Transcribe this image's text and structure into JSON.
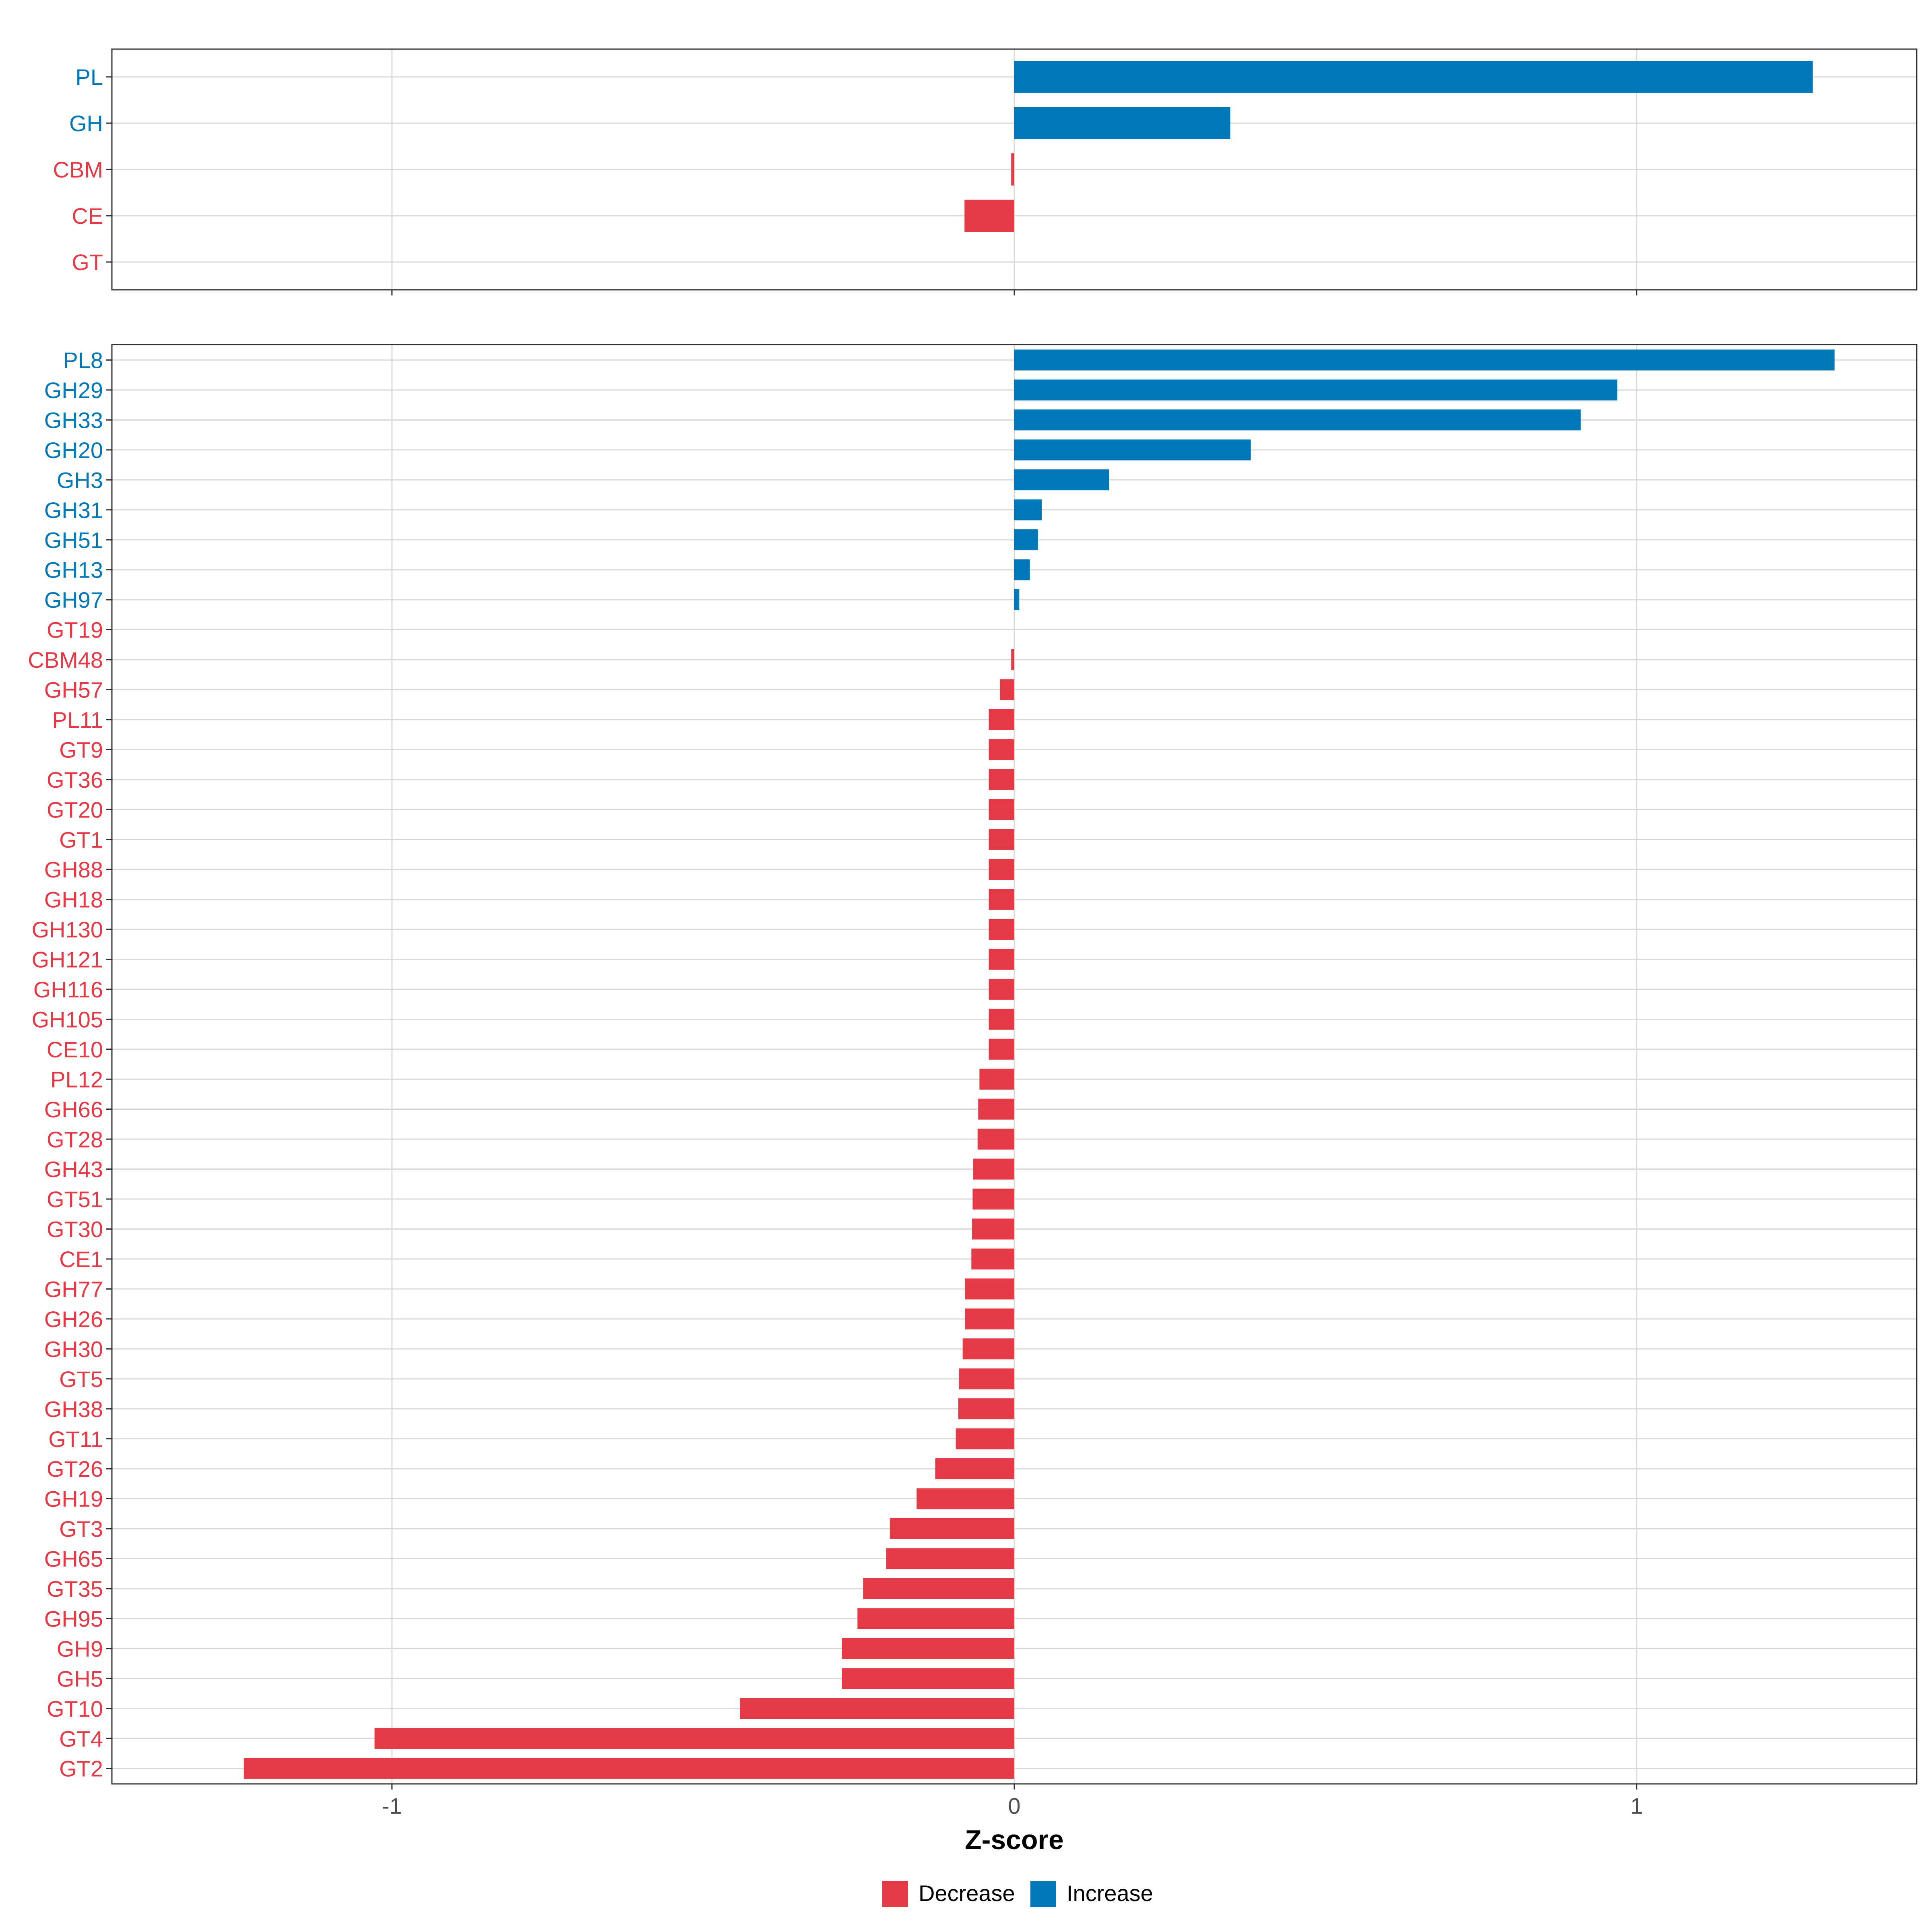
{
  "chart_data": [
    {
      "type": "bar",
      "orientation": "horizontal",
      "panel": "top",
      "title": "",
      "xlabel": "",
      "ylabel": "",
      "xlim": [
        -1.45,
        1.45
      ],
      "x_ticks": [
        -1,
        0,
        1
      ],
      "grid": true,
      "categories": [
        "PL",
        "GH",
        "CBM",
        "CE",
        "GT"
      ],
      "values": [
        1.283,
        0.347,
        -0.005,
        -0.08,
        0.0
      ],
      "groups": [
        "Increase",
        "Increase",
        "Decrease",
        "Decrease",
        "Decrease"
      ]
    },
    {
      "type": "bar",
      "orientation": "horizontal",
      "panel": "bottom",
      "title": "",
      "xlabel": "Z-score",
      "ylabel": "",
      "xlim": [
        -1.45,
        1.45
      ],
      "x_ticks": [
        -1,
        0,
        1
      ],
      "x_tick_labels": [
        "-1",
        "0",
        "1"
      ],
      "grid": true,
      "categories": [
        "PL8",
        "GH29",
        "GH33",
        "GH20",
        "GH3",
        "GH31",
        "GH51",
        "GH13",
        "GH97",
        "GT19",
        "CBM48",
        "GH57",
        "PL11",
        "GT9",
        "GT36",
        "GT20",
        "GT1",
        "GH88",
        "GH18",
        "GH130",
        "GH121",
        "GH116",
        "GH105",
        "CE10",
        "PL12",
        "GH66",
        "GT28",
        "GH43",
        "GT51",
        "GT30",
        "CE1",
        "GH77",
        "GH26",
        "GH30",
        "GT5",
        "GH38",
        "GT11",
        "GT26",
        "GH19",
        "GT3",
        "GH65",
        "GT35",
        "GH95",
        "GH9",
        "GH5",
        "GT10",
        "GT4",
        "GT2"
      ],
      "values": [
        1.318,
        0.969,
        0.91,
        0.38,
        0.152,
        0.044,
        0.038,
        0.025,
        0.008,
        0.0,
        -0.005,
        -0.023,
        -0.041,
        -0.041,
        -0.041,
        -0.041,
        -0.041,
        -0.041,
        -0.041,
        -0.041,
        -0.041,
        -0.041,
        -0.041,
        -0.041,
        -0.056,
        -0.058,
        -0.059,
        -0.066,
        -0.067,
        -0.068,
        -0.069,
        -0.079,
        -0.079,
        -0.083,
        -0.089,
        -0.09,
        -0.094,
        -0.127,
        -0.157,
        -0.2,
        -0.206,
        -0.243,
        -0.252,
        -0.277,
        -0.277,
        -0.441,
        -1.028,
        -1.238
      ],
      "groups": [
        "Increase",
        "Increase",
        "Increase",
        "Increase",
        "Increase",
        "Increase",
        "Increase",
        "Increase",
        "Increase",
        "Decrease",
        "Decrease",
        "Decrease",
        "Decrease",
        "Decrease",
        "Decrease",
        "Decrease",
        "Decrease",
        "Decrease",
        "Decrease",
        "Decrease",
        "Decrease",
        "Decrease",
        "Decrease",
        "Decrease",
        "Decrease",
        "Decrease",
        "Decrease",
        "Decrease",
        "Decrease",
        "Decrease",
        "Decrease",
        "Decrease",
        "Decrease",
        "Decrease",
        "Decrease",
        "Decrease",
        "Decrease",
        "Decrease",
        "Decrease",
        "Decrease",
        "Decrease",
        "Decrease",
        "Decrease",
        "Decrease",
        "Decrease",
        "Decrease",
        "Decrease",
        "Decrease"
      ]
    }
  ],
  "legend": {
    "placement": "bottom",
    "items": [
      {
        "label": "Decrease",
        "color": "#E63946"
      },
      {
        "label": "Increase",
        "color": "#0077B6"
      }
    ]
  },
  "colors": {
    "Decrease": "#E63946",
    "Increase": "#0077B6",
    "grid": "#D9D9D9",
    "frame": "#333333",
    "tick_text": "#4D4D4D"
  }
}
